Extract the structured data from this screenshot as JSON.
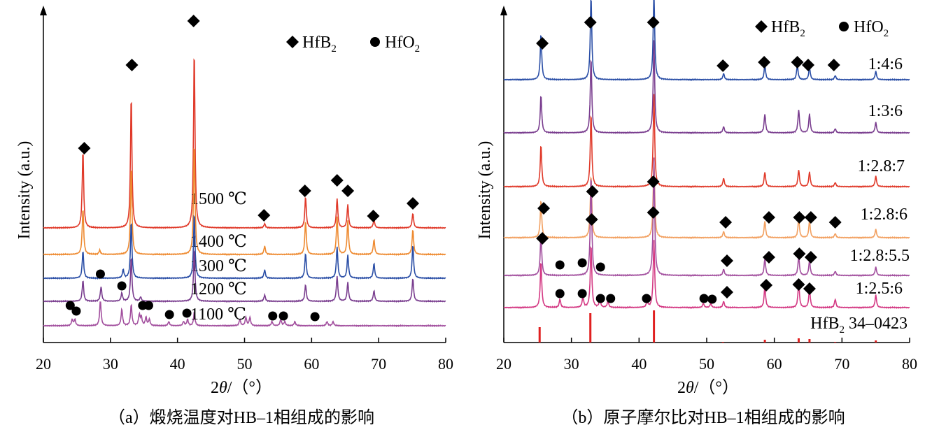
{
  "figure": {
    "colors": {
      "axis": "#000000",
      "marker": "#000000"
    }
  },
  "chart_data": [
    {
      "type": "line",
      "caption": "（a）煅烧温度对HB–1相组成的影响",
      "xlabel_pre": "2",
      "xlabel_var": "θ",
      "xlabel_post": "/（°）",
      "ylabel": "Intensity (a.u.)",
      "xlim": [
        20,
        80
      ],
      "xticks": [
        "20",
        "30",
        "40",
        "50",
        "60",
        "70",
        "80"
      ],
      "legend": [
        {
          "marker": "diamond",
          "main": "HfB",
          "sub": "2"
        },
        {
          "marker": "circle",
          "main": "HfO",
          "sub": "2"
        }
      ],
      "series": [
        {
          "name": "1500 ℃",
          "color": "#e03a2a",
          "peaks": [
            [
              25.9,
              37
            ],
            [
              33.1,
              63
            ],
            [
              42.5,
              85
            ],
            [
              53.0,
              2
            ],
            [
              59.1,
              15
            ],
            [
              63.8,
              14
            ],
            [
              65.4,
              11
            ],
            [
              69.3,
              4
            ],
            [
              75.1,
              7
            ]
          ],
          "hfo2_peaks": []
        },
        {
          "name": "1400 ℃",
          "color": "#ee8a30",
          "peaks": [
            [
              25.9,
              22
            ],
            [
              28.4,
              2
            ],
            [
              33.1,
              42
            ],
            [
              42.5,
              53
            ],
            [
              53.0,
              4
            ],
            [
              59.1,
              16
            ],
            [
              63.8,
              18
            ],
            [
              65.4,
              16
            ],
            [
              69.3,
              7
            ],
            [
              75.1,
              12
            ]
          ],
          "hfo2_peaks": []
        },
        {
          "name": "1300 ℃",
          "color": "#2a4ea6",
          "peaks": [
            [
              25.9,
              13
            ],
            [
              31.9,
              4
            ],
            [
              33.1,
              27
            ],
            [
              42.5,
              31
            ],
            [
              53.0,
              4
            ],
            [
              59.1,
              12
            ],
            [
              63.8,
              15
            ],
            [
              65.4,
              11
            ],
            [
              69.3,
              7
            ],
            [
              75.1,
              16
            ]
          ],
          "hfo2_peaks": []
        },
        {
          "name": "1200 ℃",
          "color": "#7a3e8f",
          "peaks": [
            [
              25.9,
              10
            ],
            [
              28.6,
              7
            ],
            [
              31.7,
              4
            ],
            [
              33.1,
              21
            ],
            [
              34.5,
              2
            ],
            [
              42.5,
              25
            ],
            [
              53.0,
              3
            ],
            [
              59.1,
              8
            ],
            [
              63.8,
              12
            ],
            [
              65.4,
              9
            ],
            [
              69.3,
              5
            ],
            [
              75.1,
              11
            ]
          ],
          "hfo2_peaks": []
        },
        {
          "name": "1100 ℃",
          "color": "#a24f9e",
          "peaks": [
            [
              24.3,
              3
            ],
            [
              24.7,
              3
            ],
            [
              28.5,
              12
            ],
            [
              31.7,
              8
            ],
            [
              33.1,
              10
            ],
            [
              34.3,
              5
            ],
            [
              34.6,
              4
            ],
            [
              35.3,
              4
            ],
            [
              35.8,
              3
            ],
            [
              38.7,
              2
            ],
            [
              40.9,
              2
            ],
            [
              41.5,
              3
            ],
            [
              42.5,
              6
            ],
            [
              49.3,
              3
            ],
            [
              50.2,
              4
            ],
            [
              50.8,
              4
            ],
            [
              54.1,
              2
            ],
            [
              55.4,
              3
            ],
            [
              56.0,
              2
            ],
            [
              57.5,
              2
            ],
            [
              62.3,
              2
            ],
            [
              63.2,
              2
            ]
          ],
          "hfo2_peaks": []
        }
      ],
      "annotations": {
        "hfb2_diamonds": [
          [
            26.1,
            212
          ],
          [
            33.2,
            93
          ],
          [
            42.4,
            30
          ],
          [
            52.9,
            308
          ],
          [
            59.0,
            273
          ],
          [
            63.8,
            258
          ],
          [
            65.4,
            273
          ],
          [
            69.2,
            309
          ],
          [
            75.1,
            291
          ]
        ],
        "hfo2_dots": [
          [
            24.0,
            437
          ],
          [
            24.9,
            445
          ],
          [
            28.5,
            392
          ],
          [
            31.7,
            409
          ],
          [
            34.8,
            437
          ],
          [
            35.7,
            437
          ],
          [
            38.8,
            450
          ],
          [
            41.4,
            448
          ],
          [
            54.2,
            452
          ],
          [
            55.8,
            452
          ],
          [
            60.5,
            453
          ]
        ]
      }
    },
    {
      "type": "line",
      "caption": "（b）原子摩尔比对HB–1相组成的影响",
      "xlabel_pre": "2",
      "xlabel_var": "θ",
      "xlabel_post": "/（°）",
      "ylabel": "Intensity (a.u.)",
      "xlim": [
        20,
        80
      ],
      "xticks": [
        "20",
        "30",
        "40",
        "50",
        "60",
        "70",
        "80"
      ],
      "legend": [
        {
          "marker": "diamond",
          "main": "HfB",
          "sub": "2"
        },
        {
          "marker": "circle",
          "main": "HfO",
          "sub": "2"
        }
      ],
      "series": [
        {
          "name": "1:4:6",
          "color": "#2a4ea6",
          "peaks": [
            [
              25.5,
              22
            ],
            [
              32.9,
              40
            ],
            [
              42.2,
              42
            ],
            [
              52.5,
              3
            ],
            [
              58.6,
              7
            ],
            [
              63.4,
              7
            ],
            [
              65.2,
              6
            ],
            [
              69.0,
              2
            ],
            [
              75.0,
              4
            ]
          ]
        },
        {
          "name": "1:3:6",
          "color": "#7a3e8f",
          "peaks": [
            [
              25.5,
              18
            ],
            [
              32.9,
              36
            ],
            [
              42.2,
              44
            ],
            [
              52.5,
              3
            ],
            [
              58.6,
              9
            ],
            [
              63.6,
              11
            ],
            [
              65.2,
              9
            ],
            [
              69.0,
              2
            ],
            [
              75.0,
              5
            ]
          ]
        },
        {
          "name": "1:2.8:7",
          "color": "#e03a2a",
          "peaks": [
            [
              25.5,
              20
            ],
            [
              32.9,
              35
            ],
            [
              42.2,
              44
            ],
            [
              52.5,
              4
            ],
            [
              58.6,
              7
            ],
            [
              63.6,
              8
            ],
            [
              65.2,
              7
            ],
            [
              69.0,
              2
            ],
            [
              75.0,
              5
            ]
          ]
        },
        {
          "name": "1:2.8:6",
          "color": "#f2a060",
          "peaks": [
            [
              25.5,
              18
            ],
            [
              32.9,
              30
            ],
            [
              42.2,
              38
            ],
            [
              52.5,
              3
            ],
            [
              58.6,
              8
            ],
            [
              63.6,
              9
            ],
            [
              65.2,
              8
            ],
            [
              69.0,
              2
            ],
            [
              75.0,
              4
            ]
          ]
        },
        {
          "name": "1:2.8:5.5",
          "color": "#a24f9e",
          "peaks": [
            [
              25.5,
              20
            ],
            [
              32.9,
              48
            ],
            [
              42.2,
              56
            ],
            [
              52.5,
              3
            ],
            [
              58.6,
              8
            ],
            [
              63.6,
              9
            ],
            [
              65.2,
              7
            ],
            [
              69.0,
              2
            ],
            [
              75.0,
              4
            ]
          ]
        },
        {
          "name": "1:2.5:6",
          "color": "#d43a84",
          "peaks": [
            [
              25.5,
              22
            ],
            [
              28.3,
              4
            ],
            [
              31.7,
              5
            ],
            [
              32.9,
              30
            ],
            [
              34.2,
              4
            ],
            [
              35.4,
              3
            ],
            [
              41.2,
              3
            ],
            [
              42.2,
              32
            ],
            [
              49.5,
              2
            ],
            [
              50.6,
              2
            ],
            [
              52.5,
              3
            ],
            [
              58.6,
              10
            ],
            [
              63.6,
              12
            ],
            [
              65.2,
              9
            ],
            [
              69.0,
              4
            ],
            [
              75.0,
              6
            ]
          ]
        },
        {
          "name": "HfB2 34–0423",
          "type": "sticks",
          "color": "#e02020",
          "sticks": [
            [
              25.3,
              22
            ],
            [
              32.8,
              42
            ],
            [
              42.2,
              46
            ],
            [
              52.4,
              1
            ],
            [
              58.6,
              4
            ],
            [
              63.6,
              6
            ],
            [
              65.2,
              5
            ],
            [
              69.0,
              1
            ],
            [
              75.0,
              3
            ]
          ]
        }
      ],
      "reference_label": {
        "main": "HfB",
        "sub": "2",
        "tail": " 34–0423"
      },
      "annotations": {
        "hfb2_diamonds": [
          [
            25.7,
            62
          ],
          [
            32.8,
            32
          ],
          [
            42.1,
            32
          ],
          [
            52.4,
            94
          ],
          [
            58.5,
            89
          ],
          [
            63.4,
            89
          ],
          [
            65.0,
            93
          ],
          [
            68.8,
            93
          ],
          [
            42.1,
            260
          ],
          [
            33.1,
            274
          ],
          [
            25.9,
            298
          ],
          [
            42.1,
            304
          ],
          [
            52.8,
            318
          ],
          [
            59.2,
            311
          ],
          [
            63.7,
            311
          ],
          [
            65.4,
            311
          ],
          [
            69.0,
            318
          ],
          [
            33.0,
            314
          ],
          [
            25.7,
            341
          ],
          [
            53.0,
            373
          ],
          [
            59.2,
            368
          ],
          [
            63.7,
            363
          ],
          [
            65.4,
            368
          ],
          [
            53.0,
            418
          ],
          [
            58.8,
            408
          ],
          [
            63.6,
            407
          ],
          [
            65.2,
            413
          ]
        ],
        "hfo2_dots": [
          [
            28.3,
            379
          ],
          [
            31.6,
            376
          ],
          [
            34.3,
            382
          ],
          [
            28.3,
            420
          ],
          [
            31.6,
            420
          ],
          [
            34.3,
            427
          ],
          [
            35.8,
            427
          ],
          [
            41.1,
            427
          ],
          [
            49.6,
            427
          ],
          [
            50.8,
            428
          ]
        ]
      }
    }
  ]
}
